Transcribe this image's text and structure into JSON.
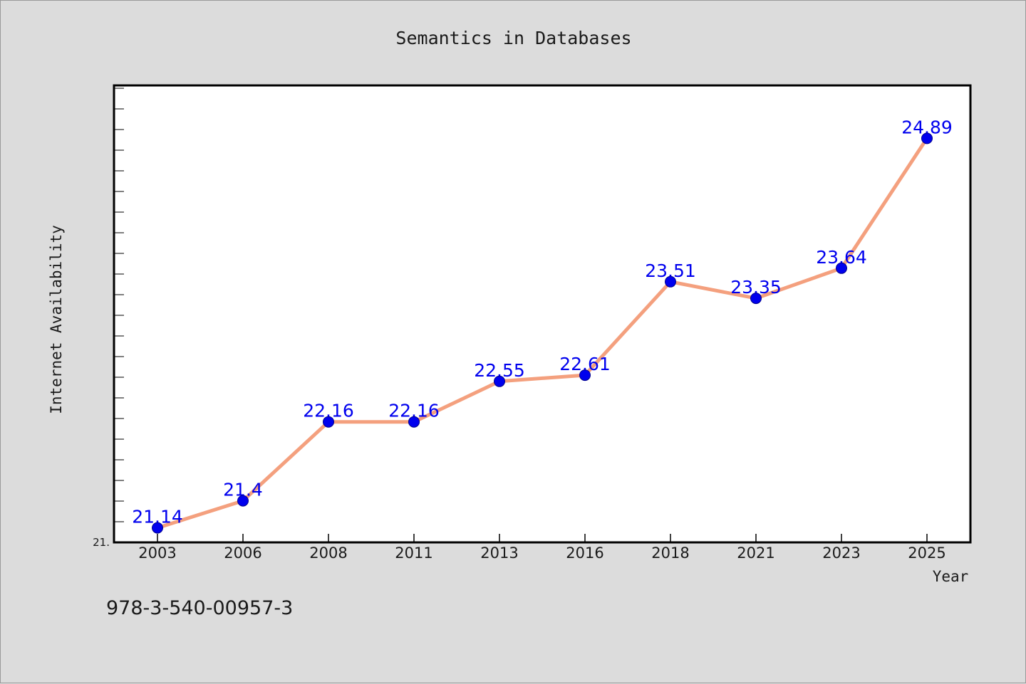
{
  "chart_data": {
    "type": "line",
    "title": "Semantics in Databases",
    "xlabel": "Year",
    "ylabel": "Internet Availability",
    "categories": [
      "2003",
      "2006",
      "2008",
      "2011",
      "2013",
      "2016",
      "2018",
      "2021",
      "2023",
      "2025"
    ],
    "series": [
      {
        "values": [
          21.14,
          21.4,
          22.16,
          22.16,
          22.55,
          22.61,
          23.51,
          23.35,
          23.64,
          24.89
        ],
        "labels": [
          "21.14",
          "21.4",
          "22.16",
          "22.16",
          "22.55",
          "22.61",
          "23.51",
          "23.35",
          "23.64",
          "24.89"
        ]
      }
    ],
    "ylim": [
      21.0,
      25.4
    ],
    "ytick_label_min": "21.",
    "grid": false,
    "legend": "none",
    "colors": {
      "line": "#f4a07e",
      "marker": "#0000ee",
      "data_label": "#0000ee",
      "plot_background": "#ffffff",
      "figure_background": "#dcdcdc"
    }
  },
  "footer": {
    "isbn": "978-3-540-00957-3"
  }
}
